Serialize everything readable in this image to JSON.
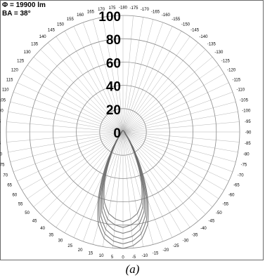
{
  "chart_data": {
    "type": "polar-line",
    "header": [
      "Φ = 19900 lm",
      "BA = 38°"
    ],
    "caption": "(a)",
    "radial": {
      "min": 0,
      "max": 100,
      "ticks": [
        0,
        20,
        40,
        60,
        80,
        100
      ],
      "tick_labels": [
        "0",
        "20",
        "40",
        "60",
        "80",
        "100"
      ]
    },
    "angular": {
      "step_deg": 5,
      "zero_direction": "bottom",
      "positive_side": "left",
      "tick_labels": [
        "0",
        "5",
        "10",
        "15",
        "20",
        "25",
        "30",
        "35",
        "40",
        "45",
        "50",
        "55",
        "60",
        "65",
        "70",
        "75",
        "80",
        "85",
        "90",
        "95",
        "100",
        "105",
        "110",
        "115",
        "120",
        "125",
        "130",
        "135",
        "140",
        "145",
        "150",
        "155",
        "160",
        "165",
        "170",
        "175",
        "-180",
        "-175",
        "-170",
        "-165",
        "-160",
        "-155",
        "-150",
        "-145",
        "-140",
        "-135",
        "-130",
        "-125",
        "-120",
        "-115",
        "-110",
        "-105",
        "-100",
        "-95",
        "-90",
        "-85",
        "-80",
        "-75",
        "-70",
        "-65",
        "-60",
        "-55",
        "-50",
        "-45",
        "-40",
        "-35",
        "-30",
        "-25",
        "-20",
        "-15",
        "-10",
        "-5"
      ]
    },
    "series": [
      {
        "angles": [
          0,
          5,
          10,
          15,
          20,
          25,
          30,
          35,
          40,
          45,
          50,
          60,
          70,
          80,
          90,
          180
        ],
        "values": [
          100,
          98,
          93,
          82,
          62,
          40,
          22,
          12,
          7,
          4,
          3,
          2,
          2,
          1.5,
          1.2,
          1
        ]
      },
      {
        "angles": [
          0,
          5,
          10,
          15,
          20,
          25,
          30,
          35,
          40,
          45,
          50,
          60,
          70,
          80,
          90,
          180
        ],
        "values": [
          96,
          94,
          89,
          78,
          59,
          37,
          20,
          11,
          6.5,
          4,
          3,
          2,
          1.8,
          1.4,
          1.1,
          1
        ]
      },
      {
        "angles": [
          0,
          5,
          10,
          15,
          20,
          25,
          30,
          35,
          40,
          45,
          50,
          60,
          70,
          80,
          90,
          180
        ],
        "values": [
          92,
          90,
          85,
          74,
          55,
          34,
          18,
          10,
          6,
          3.5,
          2.8,
          2,
          1.7,
          1.3,
          1.1,
          1
        ]
      },
      {
        "angles": [
          0,
          5,
          10,
          15,
          20,
          25,
          30,
          35,
          40,
          45,
          50,
          60,
          70,
          80,
          90,
          180
        ],
        "values": [
          87,
          85,
          80,
          70,
          52,
          32,
          17,
          9.5,
          5.5,
          3.3,
          2.6,
          1.9,
          1.6,
          1.2,
          1,
          1
        ]
      },
      {
        "angles": [
          0,
          5,
          10,
          15,
          20,
          25,
          30,
          35,
          40,
          45,
          50,
          60,
          70,
          80,
          90,
          180
        ],
        "values": [
          82,
          80,
          76,
          66,
          49,
          30,
          16,
          9,
          5,
          3,
          2.5,
          1.8,
          1.5,
          1.2,
          1,
          1
        ]
      },
      {
        "angles": [
          0,
          5,
          10,
          15,
          20,
          25,
          30,
          35,
          40,
          45,
          50,
          60,
          70,
          80,
          90,
          180
        ],
        "values": [
          77,
          75,
          71,
          62,
          46,
          28,
          15,
          8.5,
          4.8,
          2.9,
          2.4,
          1.7,
          1.4,
          1.1,
          1,
          1
        ]
      }
    ],
    "colors": {
      "grid_circle": "#8a8a8a",
      "grid_spoke": "#b5b5b5",
      "curve": "#6a6a6a",
      "label": "#000000"
    }
  }
}
